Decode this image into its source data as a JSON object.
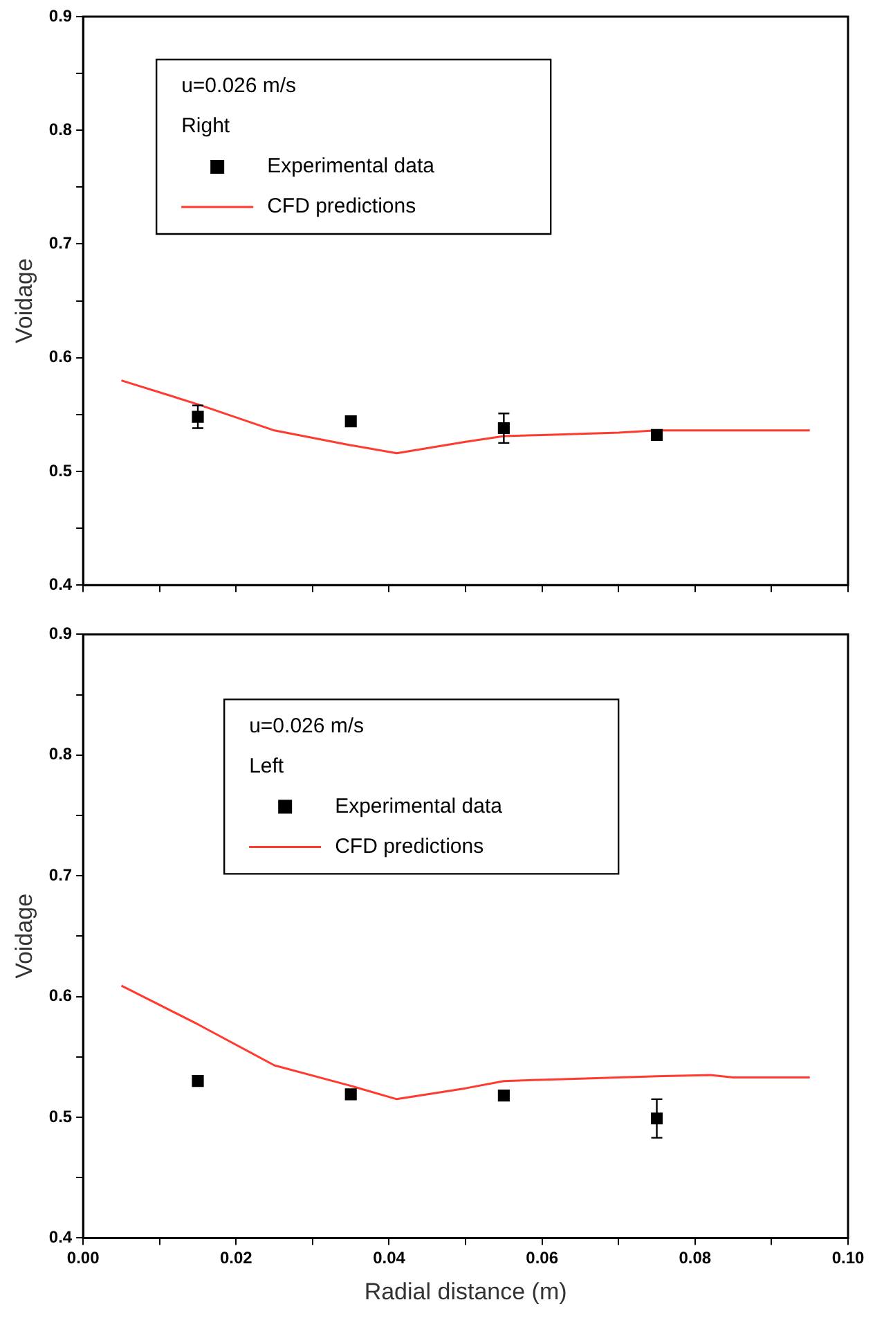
{
  "chart_data": [
    {
      "type": "scatter",
      "ylabel": "Voidage",
      "annotations": [
        "u=0.026 m/s",
        "Right"
      ],
      "legend": "top left",
      "grid": false,
      "tick_labels": "y",
      "xlim": [
        0,
        0.1
      ],
      "xticks": [
        {
          "value": 0,
          "label": null
        },
        {
          "value": 0.01,
          "label": null
        },
        {
          "value": 0.02,
          "label": null
        },
        {
          "value": 0.03,
          "label": null
        },
        {
          "value": 0.04,
          "label": null
        },
        {
          "value": 0.05,
          "label": null
        },
        {
          "value": 0.06,
          "label": null
        },
        {
          "value": 0.07,
          "label": null
        },
        {
          "value": 0.08,
          "label": null
        },
        {
          "value": 0.09,
          "label": null
        },
        {
          "value": 0.1,
          "label": null
        }
      ],
      "ylim": [
        0.4,
        0.9
      ],
      "yticks": [
        0.4,
        {
          "value": 0.45,
          "label": null
        },
        0.5,
        {
          "value": 0.55,
          "label": null
        },
        0.6,
        {
          "value": 0.65,
          "label": null
        },
        0.7,
        {
          "value": 0.75,
          "label": null
        },
        0.8,
        {
          "value": 0.85,
          "label": null
        },
        0.9
      ],
      "series": [
        {
          "name": "Experimental data",
          "marker": "square",
          "color": "#000000",
          "x": [
            0.015,
            0.035,
            0.055,
            0.075
          ],
          "values": [
            0.548,
            0.544,
            0.538,
            0.532
          ],
          "errors": [
            0.01,
            null,
            0.013,
            null
          ]
        },
        {
          "name": "CFD predictions",
          "type": "line",
          "marker": "none",
          "color": "#ff3b30",
          "x": [
            0.005,
            0.015,
            0.025,
            0.035,
            0.041,
            0.05,
            0.055,
            0.06,
            0.07,
            0.075,
            0.095
          ],
          "values": [
            0.58,
            0.559,
            0.536,
            0.523,
            0.516,
            0.526,
            0.531,
            0.532,
            0.534,
            0.536,
            0.536
          ]
        }
      ]
    },
    {
      "type": "scatter",
      "ylabel": "Voidage",
      "xlabel": "Radial distance (m)",
      "annotations": [
        "u=0.026 m/s",
        "Left"
      ],
      "legend": "top left",
      "grid": false,
      "xlim": [
        0,
        0.1
      ],
      "xticks": [
        {
          "value": 0,
          "label": "0.00"
        },
        {
          "value": 0.01,
          "label": null
        },
        {
          "value": 0.02,
          "label": "0.02"
        },
        {
          "value": 0.03,
          "label": null
        },
        {
          "value": 0.04,
          "label": "0.04"
        },
        {
          "value": 0.05,
          "label": null
        },
        {
          "value": 0.06,
          "label": "0.06"
        },
        {
          "value": 0.07,
          "label": null
        },
        {
          "value": 0.08,
          "label": "0.08"
        },
        {
          "value": 0.09,
          "label": null
        },
        {
          "value": 0.1,
          "label": "0.10"
        }
      ],
      "ylim": [
        0.4,
        0.9
      ],
      "yticks": [
        0.4,
        {
          "value": 0.45,
          "label": null
        },
        0.5,
        {
          "value": 0.55,
          "label": null
        },
        0.6,
        {
          "value": 0.65,
          "label": null
        },
        0.7,
        {
          "value": 0.75,
          "label": null
        },
        0.8,
        {
          "value": 0.85,
          "label": null
        },
        0.9
      ],
      "series": [
        {
          "name": "Experimental data",
          "marker": "square",
          "color": "#000000",
          "x": [
            0.015,
            0.035,
            0.055,
            0.075
          ],
          "values": [
            0.53,
            0.519,
            0.518,
            0.499
          ],
          "errors": [
            null,
            null,
            null,
            0.016
          ]
        },
        {
          "name": "CFD predictions",
          "type": "line",
          "marker": "none",
          "color": "#ff3b30",
          "x": [
            0.005,
            0.015,
            0.025,
            0.035,
            0.041,
            0.05,
            0.055,
            0.065,
            0.075,
            0.082,
            0.085,
            0.095
          ],
          "values": [
            0.609,
            0.577,
            0.543,
            0.526,
            0.515,
            0.524,
            0.53,
            0.532,
            0.534,
            0.535,
            0.533,
            0.533
          ]
        }
      ]
    }
  ]
}
